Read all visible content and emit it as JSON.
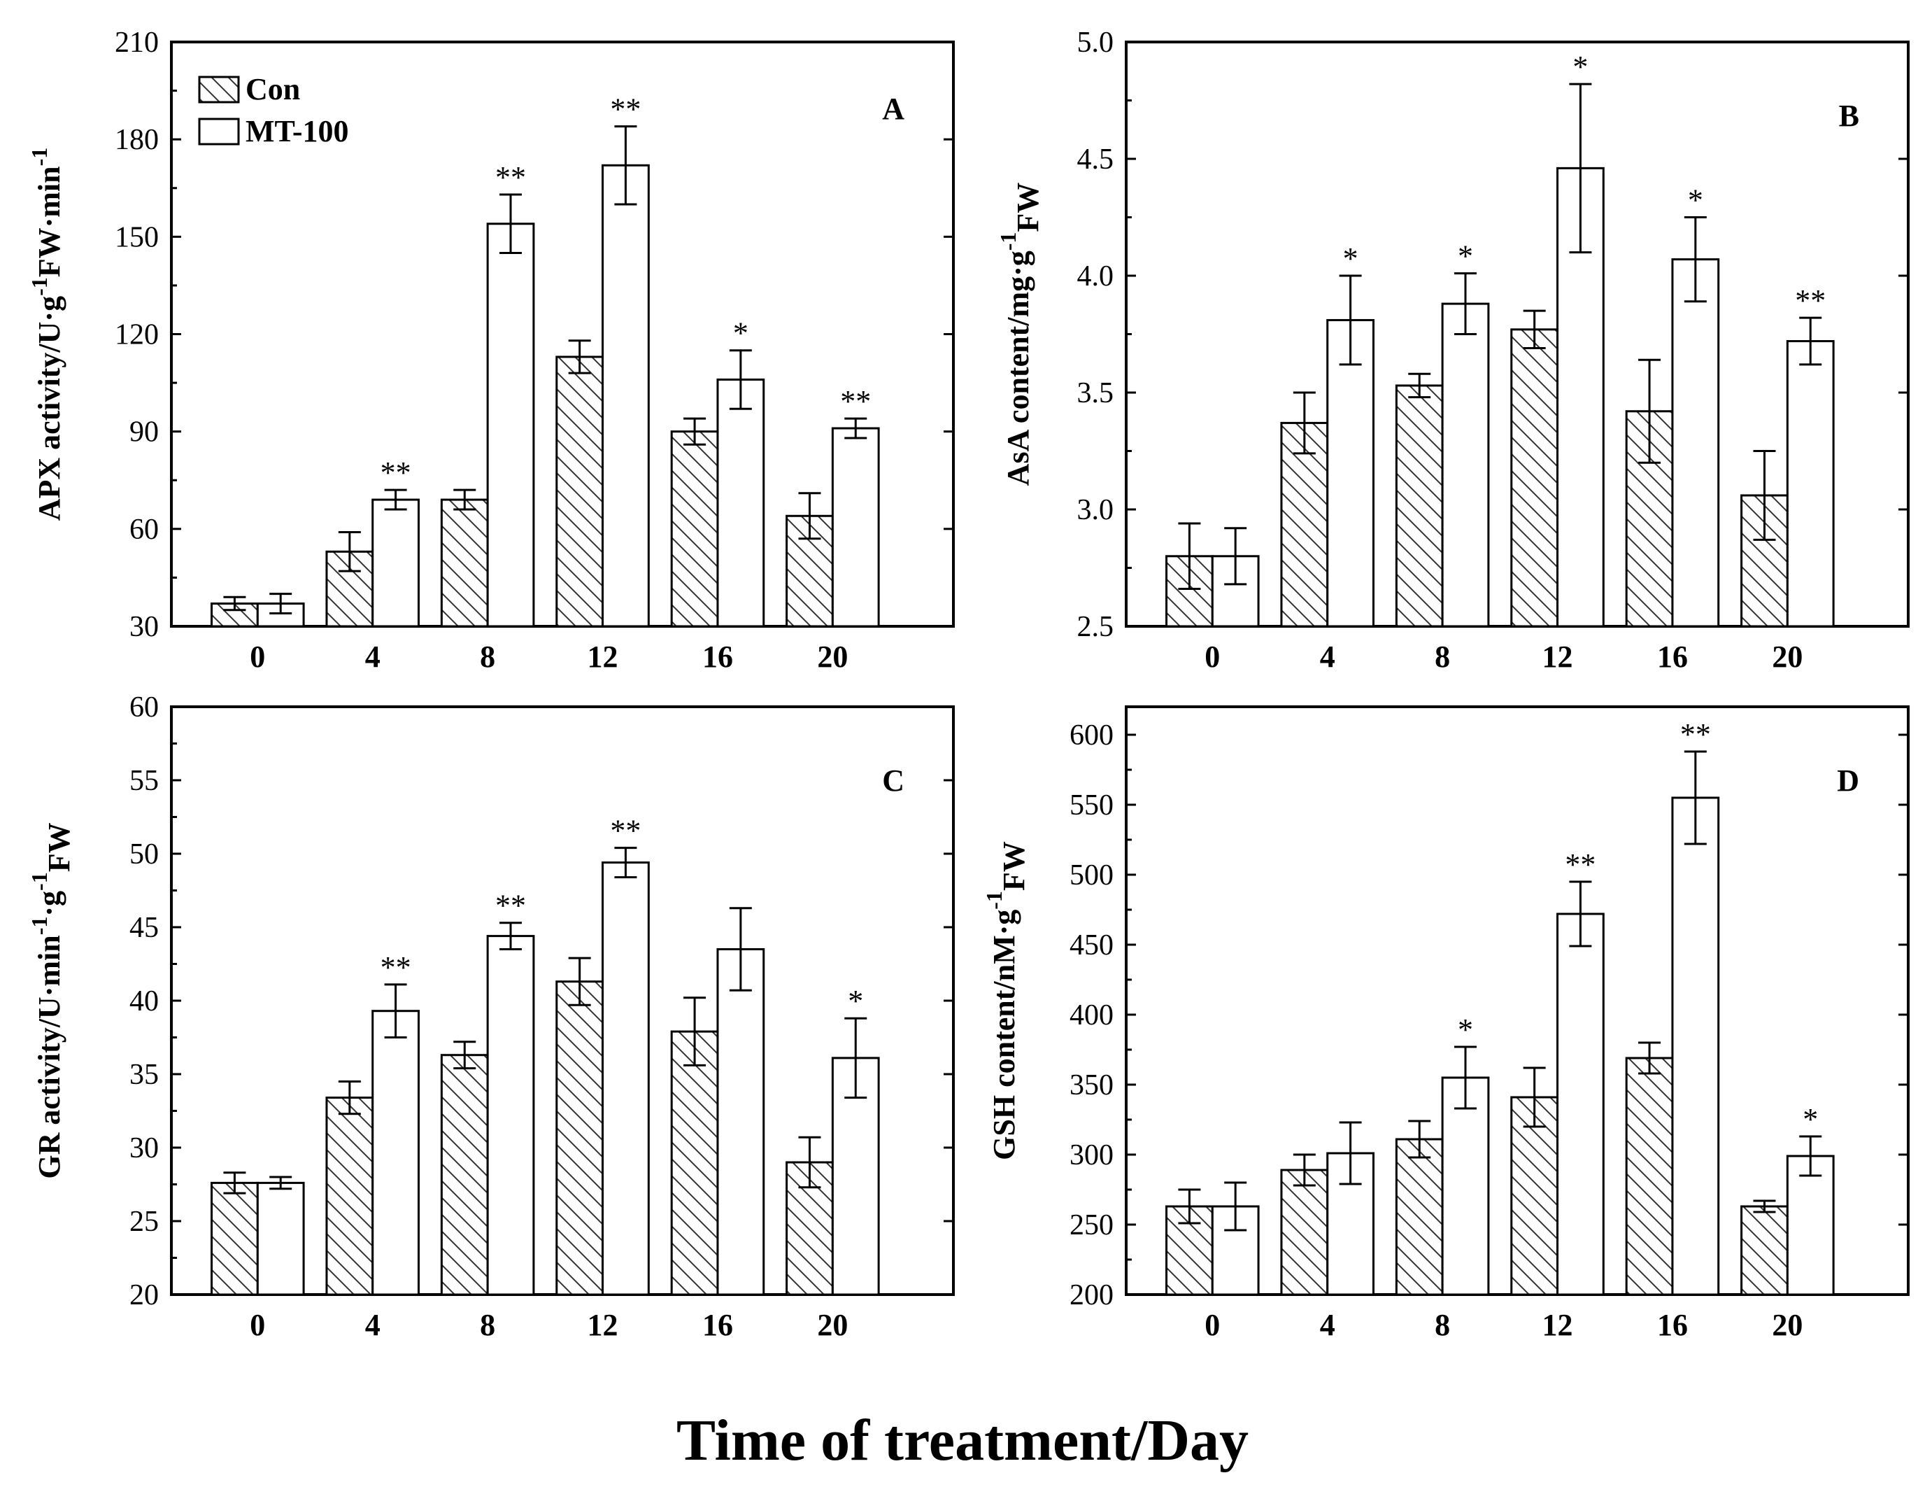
{
  "figure_title": "Time of treatment/Day",
  "colors": {
    "axis": "#000000",
    "con_fill": "#ffffff",
    "hatch_dark": "#333333",
    "hatch_light": "#bdbdbd",
    "mt_fill": "#ffffff"
  },
  "legend": {
    "con": "Con",
    "mt": "MT-100"
  },
  "chart_data": [
    {
      "type": "bar",
      "panel_label": "A",
      "legend_shown": true,
      "title": "",
      "xlabel": "",
      "ylabel": {
        "prefix": "APX activity/U·g",
        "sup": "-1",
        "middle": "FW·min",
        "sup2": "-1"
      },
      "categories": [
        "0",
        "4",
        "8",
        "12",
        "16",
        "20"
      ],
      "ylim": [
        30,
        210
      ],
      "yticks": [
        30,
        60,
        90,
        120,
        150,
        180,
        210
      ],
      "series": [
        {
          "name": "Con",
          "values": [
            37,
            53,
            69,
            113,
            90,
            64
          ],
          "errors": [
            2,
            6,
            3,
            5,
            4,
            7
          ],
          "sig": [
            "",
            "",
            "",
            "",
            "",
            ""
          ]
        },
        {
          "name": "MT-100",
          "values": [
            37,
            69,
            154,
            172,
            106,
            91
          ],
          "errors": [
            3,
            3,
            9,
            12,
            9,
            3
          ],
          "sig": [
            "",
            "**",
            "**",
            "**",
            "*",
            "**"
          ]
        }
      ]
    },
    {
      "type": "bar",
      "panel_label": "B",
      "legend_shown": false,
      "title": "",
      "xlabel": "",
      "ylabel": {
        "prefix": "AsA content/mg·g",
        "sup": "-1",
        "middle": "FW",
        "sub": true
      },
      "categories": [
        "0",
        "4",
        "8",
        "12",
        "16",
        "20"
      ],
      "ylim": [
        2.5,
        5.0
      ],
      "yticks": [
        2.5,
        3.0,
        3.5,
        4.0,
        4.5,
        5.0
      ],
      "series": [
        {
          "name": "Con",
          "values": [
            2.8,
            3.37,
            3.53,
            3.77,
            3.42,
            3.06
          ],
          "errors": [
            0.14,
            0.13,
            0.05,
            0.08,
            0.22,
            0.19
          ],
          "sig": [
            "",
            "",
            "",
            "",
            "",
            ""
          ]
        },
        {
          "name": "MT-100",
          "values": [
            2.8,
            3.81,
            3.88,
            4.46,
            4.07,
            3.72
          ],
          "errors": [
            0.12,
            0.19,
            0.13,
            0.36,
            0.18,
            0.1
          ],
          "sig": [
            "",
            "*",
            "*",
            "*",
            "*",
            "**"
          ]
        }
      ]
    },
    {
      "type": "bar",
      "panel_label": "C",
      "legend_shown": false,
      "title": "",
      "xlabel": "",
      "ylabel": {
        "prefix": "GR activity/U·min",
        "sup": "-1",
        "middle": "·g",
        "sup2": "-1",
        "suffix": "FW",
        "sub": true
      },
      "categories": [
        "0",
        "4",
        "8",
        "12",
        "16",
        "20"
      ],
      "ylim": [
        20,
        60
      ],
      "yticks": [
        20,
        25,
        30,
        35,
        40,
        45,
        50,
        55,
        60
      ],
      "series": [
        {
          "name": "Con",
          "values": [
            27.6,
            33.4,
            36.3,
            41.3,
            37.9,
            29.0
          ],
          "errors": [
            0.7,
            1.1,
            0.9,
            1.6,
            2.3,
            1.7
          ],
          "sig": [
            "",
            "",
            "",
            "",
            "",
            ""
          ]
        },
        {
          "name": "MT-100",
          "values": [
            27.6,
            39.3,
            44.4,
            49.4,
            43.5,
            36.1
          ],
          "errors": [
            0.4,
            1.8,
            0.9,
            1.0,
            2.8,
            2.7
          ],
          "sig": [
            "",
            "**",
            "**",
            "**",
            "",
            "*"
          ]
        }
      ]
    },
    {
      "type": "bar",
      "panel_label": "D",
      "legend_shown": false,
      "title": "",
      "xlabel": "",
      "ylabel": {
        "prefix": "GSH content/nM·g",
        "sup": "-1",
        "middle": "FW",
        "sub": true
      },
      "categories": [
        "0",
        "4",
        "8",
        "12",
        "16",
        "20"
      ],
      "ylim": [
        200,
        620
      ],
      "yticks": [
        200,
        250,
        300,
        350,
        400,
        450,
        500,
        550,
        600
      ],
      "series": [
        {
          "name": "Con",
          "values": [
            263,
            289,
            311,
            341,
            369,
            263
          ],
          "errors": [
            12,
            11,
            13,
            21,
            11,
            4
          ],
          "sig": [
            "",
            "",
            "",
            "",
            "",
            ""
          ]
        },
        {
          "name": "MT-100",
          "values": [
            263,
            301,
            355,
            472,
            555,
            299
          ],
          "errors": [
            17,
            22,
            22,
            23,
            33,
            14
          ],
          "sig": [
            "",
            "",
            "*",
            "**",
            "**",
            "*"
          ]
        }
      ]
    }
  ]
}
